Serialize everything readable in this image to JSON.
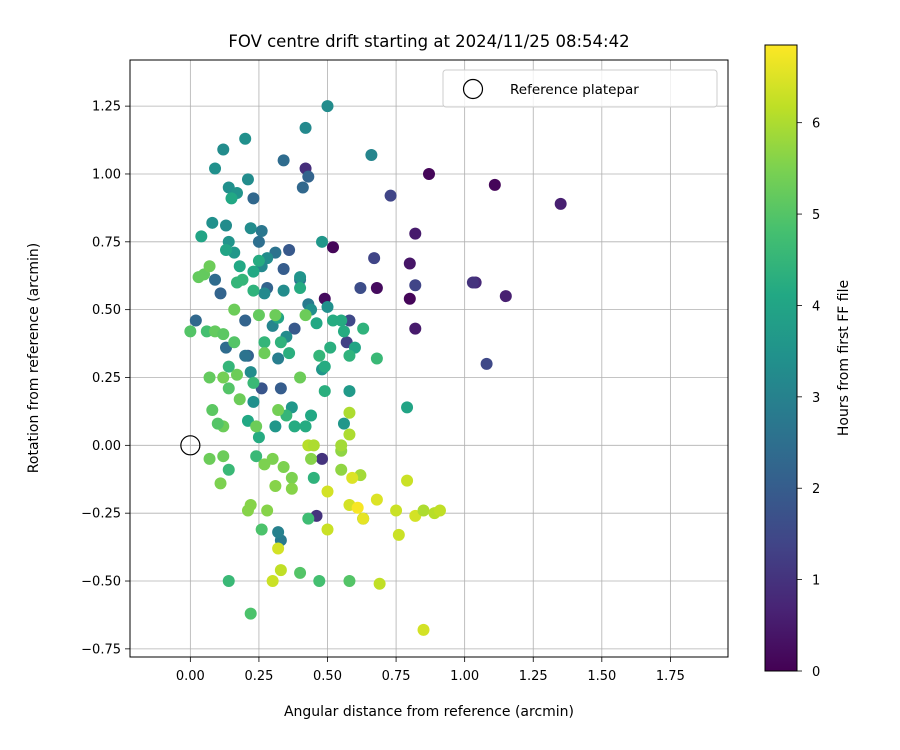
{
  "chart_data": {
    "type": "scatter",
    "title": "FOV centre drift starting at 2024/11/25 08:54:42",
    "xlabel": "Angular distance from reference (arcmin)",
    "ylabel": "Rotation from reference (arcmin)",
    "xlim": [
      -0.22,
      1.96
    ],
    "ylim": [
      -0.78,
      1.42
    ],
    "xticks": [
      0.0,
      0.25,
      0.5,
      0.75,
      1.0,
      1.25,
      1.5,
      1.75
    ],
    "xtick_labels": [
      "0.00",
      "0.25",
      "0.50",
      "0.75",
      "1.00",
      "1.25",
      "1.50",
      "1.75"
    ],
    "yticks": [
      -0.75,
      -0.5,
      -0.25,
      0.0,
      0.25,
      0.5,
      0.75,
      1.0,
      1.25
    ],
    "ytick_labels": [
      "−0.75",
      "−0.50",
      "−0.25",
      "0.00",
      "0.25",
      "0.50",
      "0.75",
      "1.00",
      "1.25"
    ],
    "grid": true,
    "legend": {
      "placement": "top-right",
      "entries": [
        "Reference platepar"
      ]
    },
    "reference_point": {
      "name": "Reference platepar",
      "x": 0.0,
      "y": 0.0
    },
    "colorbar": {
      "label": "Hours from first FF file",
      "colormap": "viridis",
      "range": [
        0,
        6.85
      ],
      "ticks": [
        0,
        1,
        2,
        3,
        4,
        5,
        6
      ],
      "tick_labels": [
        "0",
        "1",
        "2",
        "3",
        "4",
        "5",
        "6"
      ]
    },
    "points": [
      {
        "x": 0.87,
        "y": 1.0,
        "h": 0.1
      },
      {
        "x": 1.11,
        "y": 0.96,
        "h": 0.1
      },
      {
        "x": 1.35,
        "y": 0.89,
        "h": 0.6
      },
      {
        "x": 0.52,
        "y": 0.73,
        "h": 0.1
      },
      {
        "x": 0.8,
        "y": 0.54,
        "h": 0.1
      },
      {
        "x": 0.49,
        "y": 0.54,
        "h": 0.2
      },
      {
        "x": 0.68,
        "y": 0.58,
        "h": 0.2
      },
      {
        "x": 0.8,
        "y": 0.67,
        "h": 0.4
      },
      {
        "x": 0.82,
        "y": 0.78,
        "h": 0.5
      },
      {
        "x": 0.82,
        "y": 0.43,
        "h": 0.5
      },
      {
        "x": 1.15,
        "y": 0.55,
        "h": 0.6
      },
      {
        "x": 1.04,
        "y": 0.6,
        "h": 0.8
      },
      {
        "x": 1.03,
        "y": 0.6,
        "h": 1.0
      },
      {
        "x": 0.73,
        "y": 0.92,
        "h": 1.4
      },
      {
        "x": 0.82,
        "y": 0.59,
        "h": 1.4
      },
      {
        "x": 1.08,
        "y": 0.3,
        "h": 1.5
      },
      {
        "x": 0.62,
        "y": 0.58,
        "h": 1.6
      },
      {
        "x": 0.67,
        "y": 0.69,
        "h": 1.4
      },
      {
        "x": 0.42,
        "y": 1.02,
        "h": 0.9
      },
      {
        "x": 0.48,
        "y": -0.05,
        "h": 1.0
      },
      {
        "x": 0.46,
        "y": -0.26,
        "h": 1.0
      },
      {
        "x": 0.58,
        "y": 0.46,
        "h": 1.5
      },
      {
        "x": 0.57,
        "y": 0.38,
        "h": 1.3
      },
      {
        "x": 0.43,
        "y": 0.99,
        "h": 2.2
      },
      {
        "x": 0.41,
        "y": 0.95,
        "h": 2.3
      },
      {
        "x": 0.34,
        "y": 1.05,
        "h": 2.4
      },
      {
        "x": 0.23,
        "y": 0.91,
        "h": 2.3
      },
      {
        "x": 0.38,
        "y": 0.43,
        "h": 1.9
      },
      {
        "x": 0.36,
        "y": 0.72,
        "h": 1.9
      },
      {
        "x": 0.34,
        "y": 0.65,
        "h": 2.0
      },
      {
        "x": 0.28,
        "y": 0.58,
        "h": 2.2
      },
      {
        "x": 0.26,
        "y": 0.21,
        "h": 1.8
      },
      {
        "x": 0.33,
        "y": 0.21,
        "h": 2.0
      },
      {
        "x": 0.21,
        "y": 0.33,
        "h": 2.1
      },
      {
        "x": 0.2,
        "y": 0.46,
        "h": 2.2
      },
      {
        "x": 0.11,
        "y": 0.56,
        "h": 2.2
      },
      {
        "x": 0.02,
        "y": 0.46,
        "h": 2.3
      },
      {
        "x": 0.09,
        "y": 0.61,
        "h": 2.4
      },
      {
        "x": 0.13,
        "y": 0.36,
        "h": 2.4
      },
      {
        "x": 0.2,
        "y": 0.33,
        "h": 2.6
      },
      {
        "x": 0.25,
        "y": 0.75,
        "h": 2.5
      },
      {
        "x": 0.31,
        "y": 0.71,
        "h": 2.6
      },
      {
        "x": 0.26,
        "y": 0.79,
        "h": 2.7
      },
      {
        "x": 0.4,
        "y": 0.61,
        "h": 2.6
      },
      {
        "x": 0.43,
        "y": 0.52,
        "h": 2.8
      },
      {
        "x": 0.32,
        "y": 0.32,
        "h": 2.9
      },
      {
        "x": 0.33,
        "y": -0.35,
        "h": 2.8
      },
      {
        "x": 0.32,
        "y": -0.32,
        "h": 3.0
      },
      {
        "x": 0.66,
        "y": 1.07,
        "h": 3.1
      },
      {
        "x": 0.42,
        "y": 1.17,
        "h": 3.2
      },
      {
        "x": 0.5,
        "y": 1.25,
        "h": 3.3
      },
      {
        "x": 0.2,
        "y": 1.13,
        "h": 3.4
      },
      {
        "x": 0.12,
        "y": 1.09,
        "h": 3.3
      },
      {
        "x": 0.09,
        "y": 1.02,
        "h": 3.4
      },
      {
        "x": 0.14,
        "y": 0.95,
        "h": 3.4
      },
      {
        "x": 0.21,
        "y": 0.98,
        "h": 3.3
      },
      {
        "x": 0.17,
        "y": 0.93,
        "h": 3.5
      },
      {
        "x": 0.08,
        "y": 0.82,
        "h": 3.4
      },
      {
        "x": 0.13,
        "y": 0.81,
        "h": 3.3
      },
      {
        "x": 0.22,
        "y": 0.8,
        "h": 3.3
      },
      {
        "x": 0.14,
        "y": 0.75,
        "h": 3.5
      },
      {
        "x": 0.16,
        "y": 0.71,
        "h": 3.6
      },
      {
        "x": 0.28,
        "y": 0.69,
        "h": 3.3
      },
      {
        "x": 0.26,
        "y": 0.66,
        "h": 3.2
      },
      {
        "x": 0.27,
        "y": 0.56,
        "h": 3.2
      },
      {
        "x": 0.34,
        "y": 0.57,
        "h": 3.3
      },
      {
        "x": 0.4,
        "y": 0.62,
        "h": 3.5
      },
      {
        "x": 0.44,
        "y": 0.5,
        "h": 3.4
      },
      {
        "x": 0.5,
        "y": 0.51,
        "h": 3.4
      },
      {
        "x": 0.48,
        "y": 0.75,
        "h": 3.6
      },
      {
        "x": 0.3,
        "y": 0.44,
        "h": 3.1
      },
      {
        "x": 0.35,
        "y": 0.4,
        "h": 3.3
      },
      {
        "x": 0.22,
        "y": 0.27,
        "h": 3.3
      },
      {
        "x": 0.23,
        "y": 0.16,
        "h": 3.4
      },
      {
        "x": 0.37,
        "y": 0.14,
        "h": 3.6
      },
      {
        "x": 0.31,
        "y": 0.07,
        "h": 3.6
      },
      {
        "x": 0.48,
        "y": 0.28,
        "h": 3.6
      },
      {
        "x": 0.56,
        "y": 0.08,
        "h": 3.6
      },
      {
        "x": 0.58,
        "y": 0.2,
        "h": 3.7
      },
      {
        "x": 0.63,
        "y": -0.27,
        "h": 3.7
      },
      {
        "x": 0.79,
        "y": 0.14,
        "h": 4.0
      },
      {
        "x": 0.04,
        "y": 0.77,
        "h": 4.0
      },
      {
        "x": 0.13,
        "y": 0.72,
        "h": 4.0
      },
      {
        "x": 0.15,
        "y": 0.91,
        "h": 4.1
      },
      {
        "x": 0.18,
        "y": 0.66,
        "h": 4.1
      },
      {
        "x": 0.23,
        "y": 0.64,
        "h": 4.1
      },
      {
        "x": 0.25,
        "y": 0.68,
        "h": 4.2
      },
      {
        "x": 0.32,
        "y": 0.47,
        "h": 4.0
      },
      {
        "x": 0.4,
        "y": 0.58,
        "h": 4.2
      },
      {
        "x": 0.46,
        "y": 0.45,
        "h": 4.1
      },
      {
        "x": 0.52,
        "y": 0.46,
        "h": 4.2
      },
      {
        "x": 0.56,
        "y": 0.42,
        "h": 4.2
      },
      {
        "x": 0.6,
        "y": 0.36,
        "h": 4.0
      },
      {
        "x": 0.55,
        "y": 0.46,
        "h": 4.2
      },
      {
        "x": 0.49,
        "y": 0.29,
        "h": 4.2
      },
      {
        "x": 0.44,
        "y": 0.11,
        "h": 4.1
      },
      {
        "x": 0.42,
        "y": 0.07,
        "h": 4.2
      },
      {
        "x": 0.38,
        "y": 0.07,
        "h": 4.2
      },
      {
        "x": 0.21,
        "y": 0.09,
        "h": 4.1
      },
      {
        "x": 0.25,
        "y": 0.03,
        "h": 4.2
      },
      {
        "x": 0.49,
        "y": 0.2,
        "h": 4.3
      },
      {
        "x": 0.63,
        "y": 0.43,
        "h": 4.4
      },
      {
        "x": 0.68,
        "y": 0.32,
        "h": 4.6
      },
      {
        "x": 0.58,
        "y": 0.33,
        "h": 4.4
      },
      {
        "x": 0.51,
        "y": 0.36,
        "h": 4.3
      },
      {
        "x": 0.47,
        "y": 0.33,
        "h": 4.5
      },
      {
        "x": 0.36,
        "y": 0.34,
        "h": 4.3
      },
      {
        "x": 0.33,
        "y": 0.38,
        "h": 4.4
      },
      {
        "x": 0.27,
        "y": 0.38,
        "h": 4.5
      },
      {
        "x": 0.23,
        "y": 0.57,
        "h": 4.4
      },
      {
        "x": 0.19,
        "y": 0.61,
        "h": 4.5
      },
      {
        "x": 0.17,
        "y": 0.6,
        "h": 4.5
      },
      {
        "x": 0.14,
        "y": 0.29,
        "h": 4.5
      },
      {
        "x": 0.23,
        "y": 0.23,
        "h": 4.6
      },
      {
        "x": 0.35,
        "y": 0.11,
        "h": 4.5
      },
      {
        "x": 0.24,
        "y": -0.04,
        "h": 4.6
      },
      {
        "x": 0.45,
        "y": -0.12,
        "h": 4.4
      },
      {
        "x": 0.14,
        "y": -0.09,
        "h": 4.6
      },
      {
        "x": 0.14,
        "y": -0.5,
        "h": 4.6
      },
      {
        "x": 0.47,
        "y": -0.5,
        "h": 4.8
      },
      {
        "x": 0.43,
        "y": -0.27,
        "h": 4.7
      },
      {
        "x": 0.26,
        "y": -0.31,
        "h": 4.9
      },
      {
        "x": 0.22,
        "y": -0.62,
        "h": 4.9
      },
      {
        "x": 0.4,
        "y": -0.47,
        "h": 5.0
      },
      {
        "x": 0.58,
        "y": -0.5,
        "h": 5.0
      },
      {
        "x": 0.03,
        "y": 0.62,
        "h": 5.2
      },
      {
        "x": 0.05,
        "y": 0.63,
        "h": 5.2
      },
      {
        "x": 0.07,
        "y": 0.66,
        "h": 5.3
      },
      {
        "x": 0.0,
        "y": 0.42,
        "h": 5.0
      },
      {
        "x": 0.06,
        "y": 0.42,
        "h": 4.8
      },
      {
        "x": 0.09,
        "y": 0.42,
        "h": 5.2
      },
      {
        "x": 0.12,
        "y": 0.41,
        "h": 5.1
      },
      {
        "x": 0.16,
        "y": 0.38,
        "h": 5.0
      },
      {
        "x": 0.16,
        "y": 0.5,
        "h": 5.3
      },
      {
        "x": 0.25,
        "y": 0.48,
        "h": 5.2
      },
      {
        "x": 0.31,
        "y": 0.48,
        "h": 5.3
      },
      {
        "x": 0.27,
        "y": 0.34,
        "h": 5.3
      },
      {
        "x": 0.07,
        "y": 0.25,
        "h": 5.2
      },
      {
        "x": 0.12,
        "y": 0.25,
        "h": 5.4
      },
      {
        "x": 0.17,
        "y": 0.26,
        "h": 5.3
      },
      {
        "x": 0.18,
        "y": 0.17,
        "h": 5.3
      },
      {
        "x": 0.08,
        "y": 0.13,
        "h": 5.1
      },
      {
        "x": 0.14,
        "y": 0.21,
        "h": 5.0
      },
      {
        "x": 0.12,
        "y": 0.07,
        "h": 5.3
      },
      {
        "x": 0.1,
        "y": 0.08,
        "h": 5.0
      },
      {
        "x": 0.24,
        "y": 0.07,
        "h": 5.3
      },
      {
        "x": 0.32,
        "y": 0.13,
        "h": 5.4
      },
      {
        "x": 0.4,
        "y": 0.25,
        "h": 5.3
      },
      {
        "x": 0.42,
        "y": 0.48,
        "h": 5.3
      },
      {
        "x": 0.07,
        "y": -0.05,
        "h": 5.3
      },
      {
        "x": 0.12,
        "y": -0.04,
        "h": 5.3
      },
      {
        "x": 0.11,
        "y": -0.14,
        "h": 5.5
      },
      {
        "x": 0.27,
        "y": -0.07,
        "h": 5.5
      },
      {
        "x": 0.3,
        "y": -0.05,
        "h": 5.5
      },
      {
        "x": 0.34,
        "y": -0.08,
        "h": 5.5
      },
      {
        "x": 0.37,
        "y": -0.12,
        "h": 5.5
      },
      {
        "x": 0.37,
        "y": -0.16,
        "h": 5.6
      },
      {
        "x": 0.44,
        "y": -0.05,
        "h": 5.6
      },
      {
        "x": 0.31,
        "y": -0.15,
        "h": 5.6
      },
      {
        "x": 0.28,
        "y": -0.24,
        "h": 5.6
      },
      {
        "x": 0.21,
        "y": -0.24,
        "h": 5.6
      },
      {
        "x": 0.22,
        "y": -0.22,
        "h": 5.6
      },
      {
        "x": 0.55,
        "y": -0.09,
        "h": 5.7
      },
      {
        "x": 0.55,
        "y": -0.02,
        "h": 5.7
      },
      {
        "x": 0.62,
        "y": -0.11,
        "h": 5.9
      },
      {
        "x": 0.58,
        "y": 0.04,
        "h": 6.0
      },
      {
        "x": 0.58,
        "y": 0.12,
        "h": 6.0
      },
      {
        "x": 0.55,
        "y": 0.0,
        "h": 5.9
      },
      {
        "x": 0.43,
        "y": 0.0,
        "h": 6.1
      },
      {
        "x": 0.45,
        "y": 0.0,
        "h": 6.0
      },
      {
        "x": 0.3,
        "y": -0.5,
        "h": 6.3
      },
      {
        "x": 0.33,
        "y": -0.46,
        "h": 6.2
      },
      {
        "x": 0.32,
        "y": -0.38,
        "h": 6.4
      },
      {
        "x": 0.5,
        "y": -0.31,
        "h": 6.3
      },
      {
        "x": 0.5,
        "y": -0.17,
        "h": 6.4
      },
      {
        "x": 0.58,
        "y": -0.22,
        "h": 6.4
      },
      {
        "x": 0.59,
        "y": -0.12,
        "h": 6.5
      },
      {
        "x": 0.68,
        "y": -0.2,
        "h": 6.5
      },
      {
        "x": 0.75,
        "y": -0.24,
        "h": 6.3
      },
      {
        "x": 0.76,
        "y": -0.33,
        "h": 6.3
      },
      {
        "x": 0.69,
        "y": -0.51,
        "h": 6.2
      },
      {
        "x": 0.79,
        "y": -0.13,
        "h": 6.3
      },
      {
        "x": 0.82,
        "y": -0.26,
        "h": 6.4
      },
      {
        "x": 0.85,
        "y": -0.24,
        "h": 6.0
      },
      {
        "x": 0.89,
        "y": -0.25,
        "h": 6.1
      },
      {
        "x": 0.91,
        "y": -0.24,
        "h": 6.2
      },
      {
        "x": 0.85,
        "y": -0.68,
        "h": 6.4
      },
      {
        "x": 0.63,
        "y": -0.27,
        "h": 6.6
      },
      {
        "x": 0.61,
        "y": -0.23,
        "h": 6.8
      }
    ]
  }
}
